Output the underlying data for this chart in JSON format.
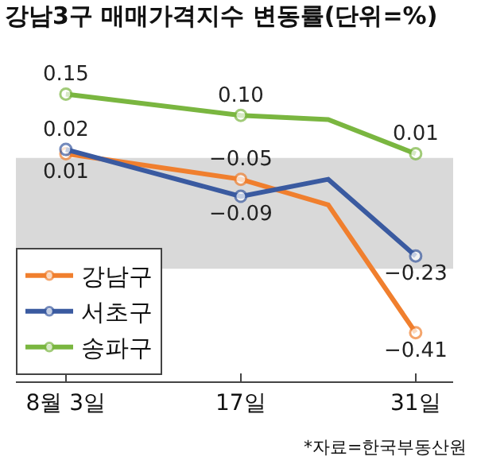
{
  "chart_data": {
    "type": "line",
    "title": "강남3구 매매가격지수 변동률(단위=%)",
    "x": [
      "--08-03",
      "--08-17",
      "--08-24",
      "--08-31"
    ],
    "series": [
      {
        "name": "강남구",
        "color": "#f07f2e",
        "values": [
          0.01,
          -0.05,
          -0.11,
          -0.41
        ],
        "value_labels": [
          "0.01",
          "−0.05",
          null,
          "−0.41"
        ]
      },
      {
        "name": "서초구",
        "color": "#3a5aa0",
        "values": [
          0.02,
          -0.09,
          -0.05,
          -0.23
        ],
        "value_labels": [
          "0.02",
          "−0.09",
          null,
          "−0.23"
        ]
      },
      {
        "name": "송파구",
        "color": "#7ab640",
        "values": [
          0.15,
          0.1,
          0.09,
          0.01
        ],
        "value_labels": [
          "0.15",
          "0.10",
          null,
          "0.01"
        ]
      }
    ],
    "xlim": [
      "--07-30",
      "--09-03"
    ],
    "xticks": [
      {
        "value": "--08-03",
        "label": "8월 3일"
      },
      {
        "value": "--08-17",
        "label": "17일"
      },
      {
        "value": "--08-31",
        "label": "31일"
      }
    ],
    "tick_labels": "x",
    "bands": [
      {
        "axis": "y",
        "from": -0.26,
        "to": 0,
        "color": "#d9d9d9"
      }
    ],
    "grid": false,
    "legend": "bottom left",
    "marker": "circle",
    "line_style": "solid",
    "annotations": [
      "*자료=한국부동산원"
    ]
  }
}
